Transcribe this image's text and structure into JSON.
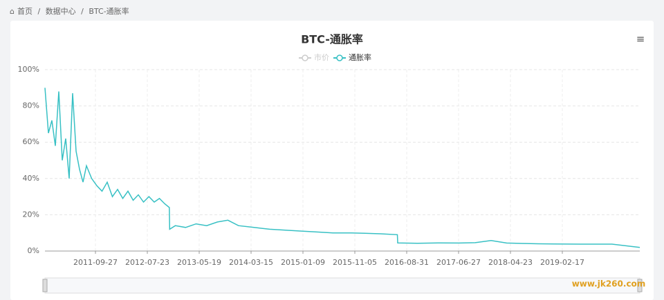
{
  "breadcrumb": [
    "首页",
    "数据中心",
    "BTC-通胀率"
  ],
  "watermark": "www.jk260.com",
  "chart_data": {
    "type": "line",
    "title": "BTC-通胀率",
    "legend": [
      {
        "name": "市价",
        "color": "#cccccc"
      },
      {
        "name": "通胀率",
        "color": "#37c0c4"
      }
    ],
    "x": [
      "2010-12-09",
      "2010-12-29",
      "2011-01-18",
      "2011-02-07",
      "2011-02-27",
      "2011-03-19",
      "2011-04-08",
      "2011-04-28",
      "2011-05-18",
      "2011-06-07",
      "2011-06-27",
      "2011-07-17",
      "2011-08-06",
      "2011-09-05",
      "2011-10-05",
      "2011-11-04",
      "2011-12-04",
      "2012-01-03",
      "2012-02-02",
      "2012-03-03",
      "2012-04-02",
      "2012-05-02",
      "2012-06-01",
      "2012-07-01",
      "2012-08-01",
      "2012-09-01",
      "2012-10-01",
      "2012-11-01",
      "2012-11-27",
      "2012-11-29",
      "2013-01-01",
      "2013-03-01",
      "2013-05-01",
      "2013-07-01",
      "2013-09-01",
      "2013-11-01",
      "2014-01-01",
      "2014-04-01",
      "2014-07-01",
      "2014-10-01",
      "2015-01-01",
      "2015-04-01",
      "2015-07-01",
      "2015-10-01",
      "2016-01-01",
      "2016-04-01",
      "2016-07-08",
      "2016-07-10",
      "2016-11-01",
      "2017-03-01",
      "2017-07-01",
      "2017-10-01",
      "2018-01-01",
      "2018-04-01",
      "2018-07-01",
      "2018-10-01",
      "2019-01-01",
      "2019-06-01",
      "2019-12-01",
      "2020-05-10"
    ],
    "series": [
      {
        "name": "通胀率",
        "color": "#37c0c4",
        "values": [
          90,
          65,
          72,
          58,
          88,
          50,
          62,
          40,
          87,
          55,
          45,
          38,
          47,
          40,
          36,
          33,
          38,
          30,
          34,
          29,
          33,
          28,
          31,
          27,
          30,
          27,
          29,
          26,
          24,
          12,
          14,
          13,
          15,
          14,
          16,
          17,
          14,
          13,
          12,
          11.5,
          11,
          10.5,
          10,
          10,
          9.8,
          9.5,
          9,
          4.5,
          4.3,
          4.5,
          4.4,
          4.6,
          5.8,
          4.4,
          4.2,
          4,
          3.9,
          3.8,
          3.8,
          2
        ]
      }
    ],
    "xlim": [
      "2010-12-09",
      "2020-05-10"
    ],
    "xticks": [
      "2011-09-27",
      "2012-07-23",
      "2013-05-19",
      "2014-03-15",
      "2015-01-09",
      "2015-11-05",
      "2016-08-31",
      "2017-06-27",
      "2018-04-23",
      "2019-02-17"
    ],
    "ylim": [
      0,
      100
    ],
    "yticks": [
      {
        "value": 0,
        "label": "0%"
      },
      {
        "value": 20,
        "label": "20%"
      },
      {
        "value": 40,
        "label": "40%"
      },
      {
        "value": 60,
        "label": "60%"
      },
      {
        "value": 80,
        "label": "80%"
      },
      {
        "value": 100,
        "label": "100%"
      }
    ],
    "grid": true
  }
}
